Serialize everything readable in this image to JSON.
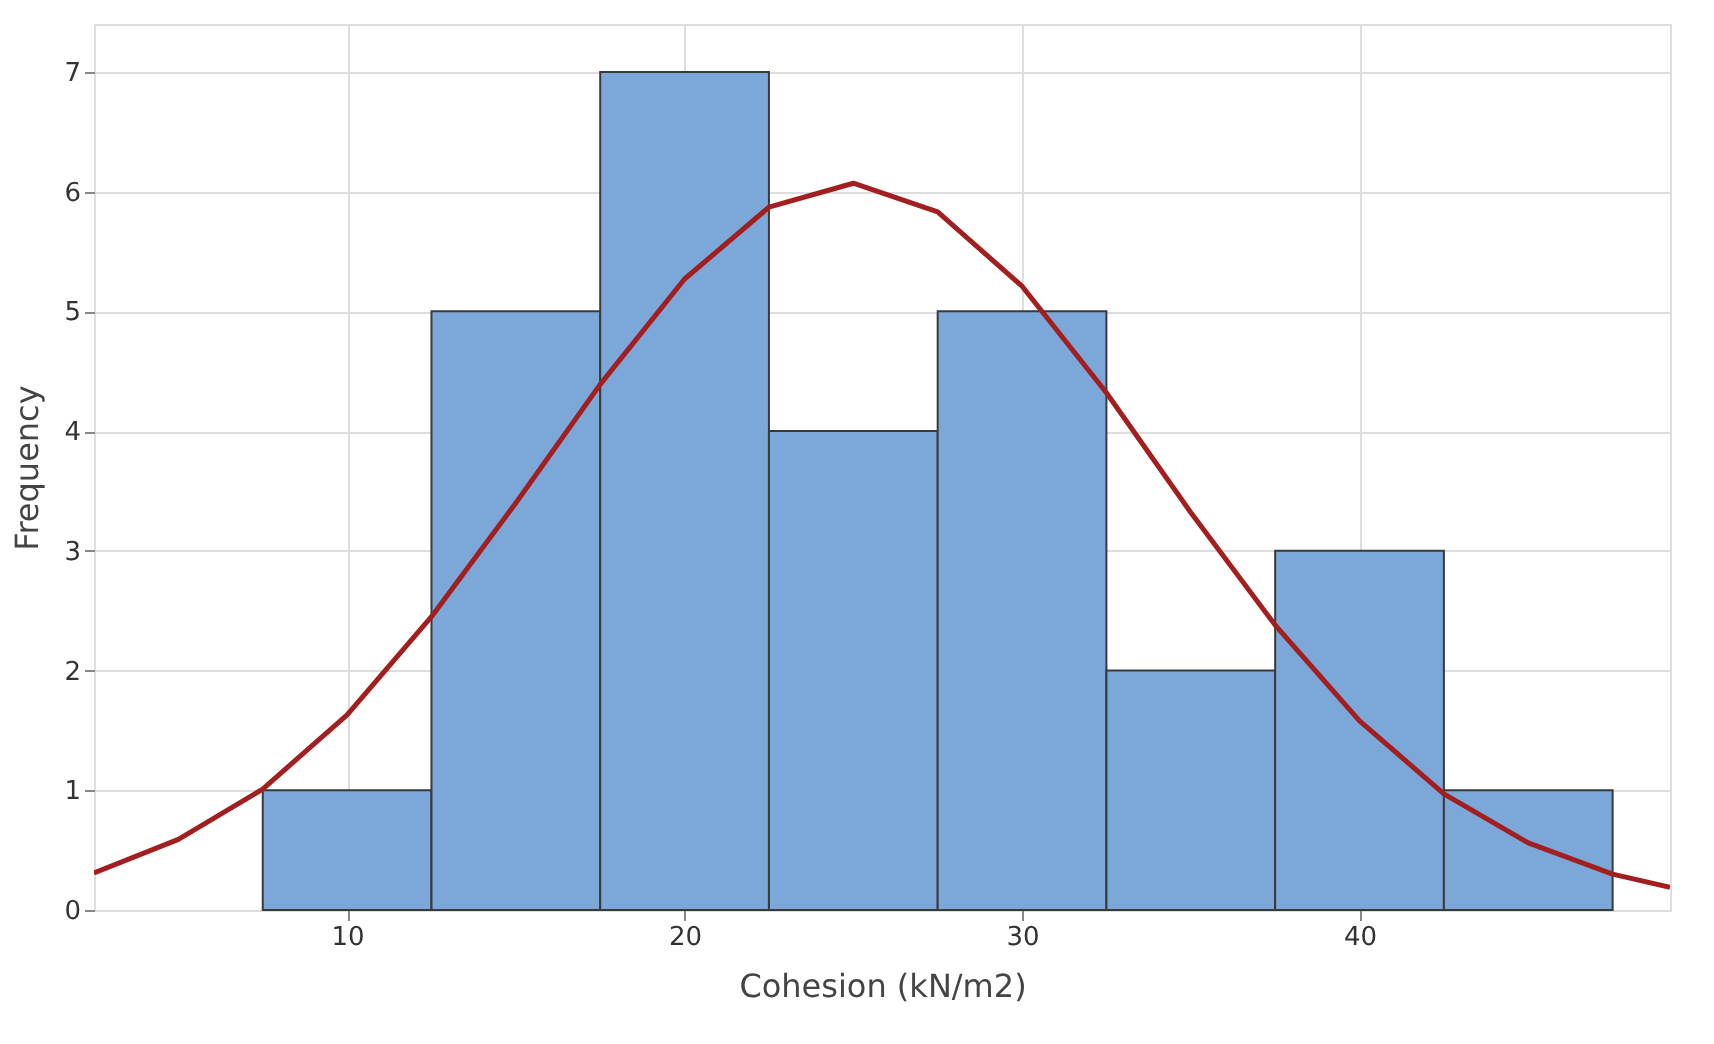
{
  "chart_data": {
    "type": "histogram",
    "xlabel": "Cohesion (kN/m2)",
    "ylabel": "Frequency",
    "bins": [
      7.5,
      12.5,
      17.5,
      22.5,
      27.5,
      32.5,
      37.5,
      42.5,
      47.5
    ],
    "values": [
      1,
      5,
      7,
      4,
      5,
      2,
      3,
      1
    ],
    "color": "#7ba7d9",
    "series": [
      {
        "type": "line",
        "color": "#a31f1f",
        "x": [
          2.5,
          5,
          7.5,
          10,
          12.5,
          15,
          17.5,
          20,
          22.5,
          25,
          27.5,
          30,
          32.5,
          35,
          37.5,
          40,
          42.5,
          45,
          47.5,
          49.2
        ],
        "values": [
          0.31,
          0.59,
          1.01,
          1.63,
          2.45,
          3.4,
          4.39,
          5.27,
          5.87,
          6.07,
          5.83,
          5.21,
          4.32,
          3.32,
          2.38,
          1.58,
          0.97,
          0.56,
          0.3,
          0.19
        ]
      }
    ],
    "xlim": [
      2.5,
      49.2
    ],
    "xticks": [
      10,
      20,
      30,
      40
    ],
    "ylim": [
      0,
      7.4
    ],
    "yticks": [
      0,
      1,
      2,
      3,
      4,
      5,
      6,
      7
    ],
    "grid": true
  }
}
